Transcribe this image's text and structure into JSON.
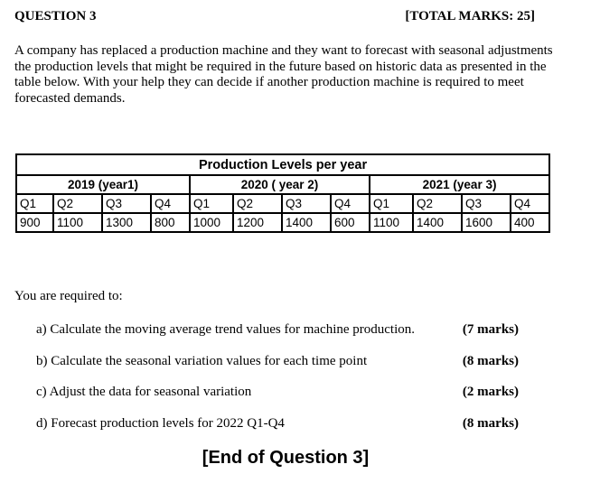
{
  "header": {
    "question": "QUESTION 3",
    "total_marks": "[TOTAL MARKS: 25]"
  },
  "intro": "A company has replaced a production machine and they want to forecast with seasonal adjustments the production levels that might be required in the future based on historic data as presented in the table below. With your help they can decide if another production machine is required to meet forecasted demands.",
  "table": {
    "title": "Production Levels per year",
    "years": [
      "2019 (year1)",
      "2020 ( year 2)",
      "2021 (year 3)"
    ],
    "quarters": [
      "Q1",
      "Q2",
      "Q3",
      "Q4",
      "Q1",
      "Q2",
      "Q3",
      "Q4",
      "Q1",
      "Q2",
      "Q3",
      "Q4"
    ],
    "values": [
      "900",
      "1100",
      "1300",
      "800",
      "1000",
      "1200",
      "1400",
      "600",
      "1100",
      "1400",
      "1600",
      "400"
    ]
  },
  "required_intro": "You are required to:",
  "tasks": [
    {
      "label": "a)  Calculate the moving average trend values for machine production.",
      "marks": "(7 marks)"
    },
    {
      "label": "b)  Calculate the seasonal variation values for each time point",
      "marks": "(8 marks)"
    },
    {
      "label": "c)  Adjust the data for seasonal variation",
      "marks": "(2 marks)"
    },
    {
      "label": "d)  Forecast production levels for 2022 Q1-Q4",
      "marks": "(8 marks)"
    }
  ],
  "end_text": "[End of Question 3]"
}
